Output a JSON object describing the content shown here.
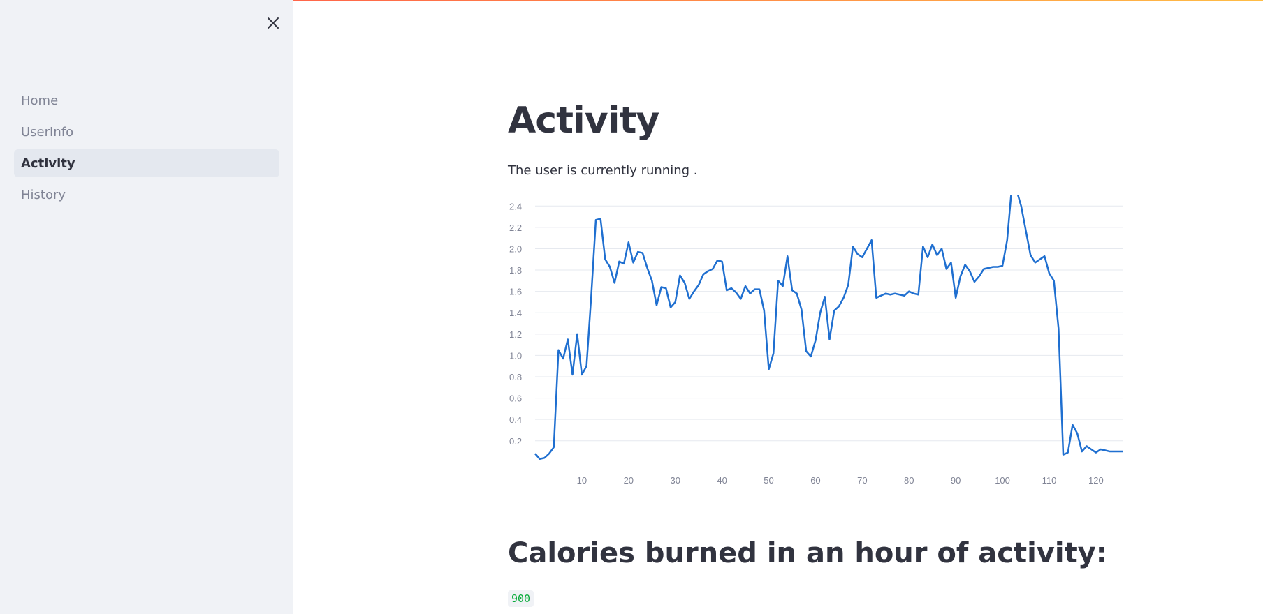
{
  "sidebar": {
    "items": [
      {
        "label": "Home",
        "active": false
      },
      {
        "label": "UserInfo",
        "active": false
      },
      {
        "label": "Activity",
        "active": true
      },
      {
        "label": "History",
        "active": false
      }
    ],
    "close_icon": "close-icon"
  },
  "main": {
    "title": "Activity",
    "status_text": "The user is currently running .",
    "calories_heading": "Calories burned in an hour of activity:",
    "calories_value": "900"
  },
  "colors": {
    "line": "#1f6fd0",
    "sidebar_bg": "#f0f2f6",
    "active_item_bg": "#e4e8ef",
    "value_green": "#09ab3b"
  },
  "chart_data": {
    "type": "line",
    "xlabel": "",
    "ylabel": "",
    "x_ticks": [
      10,
      20,
      30,
      40,
      50,
      60,
      70,
      80,
      90,
      100,
      110,
      120
    ],
    "y_ticks": [
      0.2,
      0.4,
      0.6,
      0.8,
      1.0,
      1.2,
      1.4,
      1.6,
      1.8,
      2.0,
      2.2,
      2.4
    ],
    "y_tick_labels": [
      "0.2",
      "0.4",
      "0.6",
      "0.8",
      "1.0",
      "1.2",
      "1.4",
      "1.6",
      "1.8",
      "2.0",
      "2.2",
      "2.4"
    ],
    "xlim": [
      0,
      126
    ],
    "ylim": [
      -0.05,
      2.5
    ],
    "grid": true,
    "series": [
      {
        "values": [
          0.08,
          0.03,
          0.04,
          0.08,
          0.14,
          1.05,
          0.97,
          1.15,
          0.82,
          1.2,
          0.82,
          0.9,
          1.55,
          2.27,
          2.28,
          1.9,
          1.83,
          1.68,
          1.88,
          1.86,
          2.06,
          1.87,
          1.97,
          1.96,
          1.82,
          1.7,
          1.47,
          1.64,
          1.63,
          1.45,
          1.5,
          1.75,
          1.68,
          1.53,
          1.6,
          1.66,
          1.76,
          1.79,
          1.81,
          1.89,
          1.88,
          1.61,
          1.63,
          1.59,
          1.53,
          1.65,
          1.58,
          1.62,
          1.62,
          1.42,
          0.87,
          1.02,
          1.7,
          1.65,
          1.93,
          1.61,
          1.58,
          1.43,
          1.04,
          0.99,
          1.14,
          1.4,
          1.55,
          1.15,
          1.42,
          1.46,
          1.54,
          1.66,
          2.02,
          1.95,
          1.92,
          2.0,
          2.08,
          1.54,
          1.56,
          1.58,
          1.57,
          1.58,
          1.57,
          1.56,
          1.6,
          1.58,
          1.57,
          2.02,
          1.92,
          2.04,
          1.94,
          2.0,
          1.81,
          1.87,
          1.54,
          1.74,
          1.85,
          1.79,
          1.69,
          1.74,
          1.81,
          1.82,
          1.83,
          1.83,
          1.84,
          2.08,
          2.58,
          2.55,
          2.4,
          2.17,
          1.94,
          1.87,
          1.9,
          1.93,
          1.77,
          1.7,
          1.25,
          0.07,
          0.09,
          0.35,
          0.27,
          0.1,
          0.15,
          0.12,
          0.09,
          0.12,
          0.11,
          0.1,
          0.1,
          0.1,
          0.1
        ]
      }
    ]
  }
}
